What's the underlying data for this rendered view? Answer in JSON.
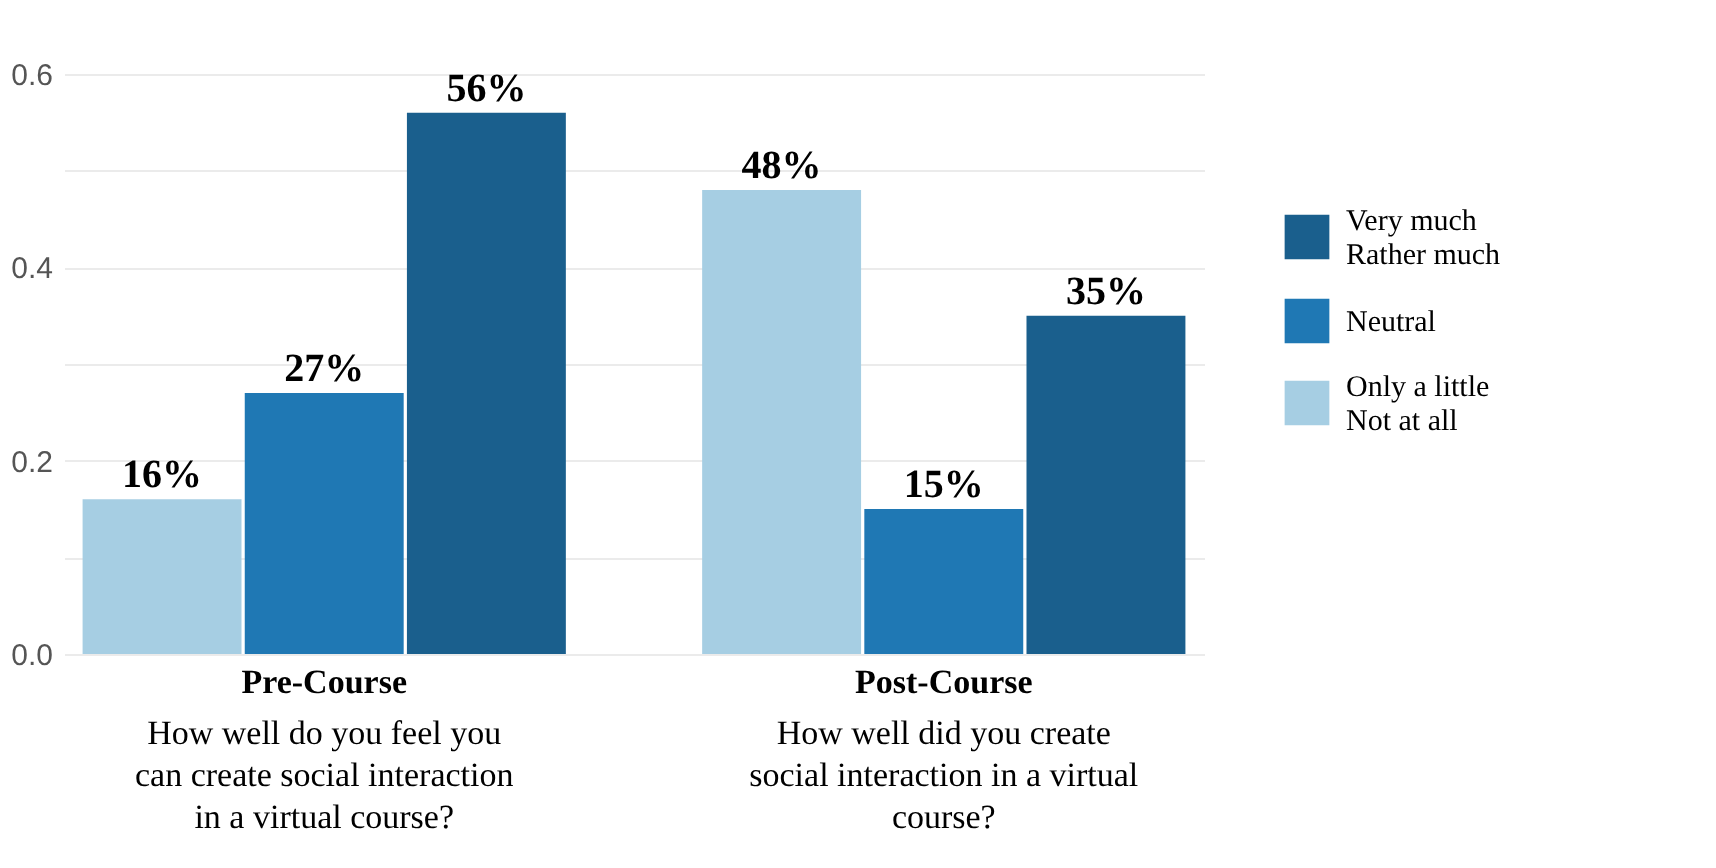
{
  "chart_data": {
    "type": "bar",
    "categories": [
      "Pre-Course",
      "Post-Course"
    ],
    "annotations": [
      "How well do you feel you\ncan create social interaction\nin a virtual course?",
      "How well did you create\nsocial interaction in a virtual\ncourse?"
    ],
    "series": [
      {
        "name": "Only a little\nNot at all",
        "color": "#a6cee3",
        "values": [
          0.16,
          0.48
        ],
        "value_labels": [
          "16%",
          "48%"
        ]
      },
      {
        "name": "Neutral",
        "color": "#1f78b4",
        "values": [
          0.27,
          0.15
        ],
        "value_labels": [
          "27%",
          "15%"
        ]
      },
      {
        "name": "Very much\nRather much",
        "color": "#1a5f8d",
        "values": [
          0.56,
          0.35
        ],
        "value_labels": [
          "56%",
          "35%"
        ]
      }
    ],
    "ylim": [
      0,
      0.6
    ],
    "yticks": [
      {
        "value": 0,
        "label": "0.0"
      },
      {
        "value": 0.1,
        "label": null
      },
      0.2,
      {
        "value": 0.3,
        "label": null
      },
      0.4,
      {
        "value": 0.5,
        "label": null
      },
      0.6
    ],
    "grid": "y",
    "legend": "right"
  }
}
